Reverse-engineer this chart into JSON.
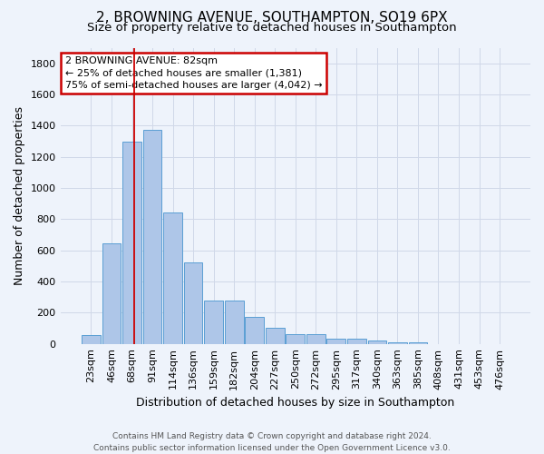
{
  "title": "2, BROWNING AVENUE, SOUTHAMPTON, SO19 6PX",
  "subtitle": "Size of property relative to detached houses in Southampton",
  "xlabel": "Distribution of detached houses by size in Southampton",
  "ylabel": "Number of detached properties",
  "footer_line1": "Contains HM Land Registry data © Crown copyright and database right 2024.",
  "footer_line2": "Contains public sector information licensed under the Open Government Licence v3.0.",
  "categories": [
    "23sqm",
    "46sqm",
    "68sqm",
    "91sqm",
    "114sqm",
    "136sqm",
    "159sqm",
    "182sqm",
    "204sqm",
    "227sqm",
    "250sqm",
    "272sqm",
    "295sqm",
    "317sqm",
    "340sqm",
    "363sqm",
    "385sqm",
    "408sqm",
    "431sqm",
    "453sqm",
    "476sqm"
  ],
  "values": [
    55,
    645,
    1300,
    1370,
    845,
    525,
    275,
    275,
    175,
    105,
    65,
    65,
    35,
    35,
    20,
    10,
    10,
    0,
    0,
    0,
    0
  ],
  "bar_color": "#aec6e8",
  "bar_edge_color": "#5a9fd4",
  "background_color": "#eef3fb",
  "grid_color": "#d0d8e8",
  "annotation_line1": "2 BROWNING AVENUE: 82sqm",
  "annotation_line2": "← 25% of detached houses are smaller (1,381)",
  "annotation_line3": "75% of semi-detached houses are larger (4,042) →",
  "annotation_box_color": "#ffffff",
  "annotation_box_edge_color": "#cc0000",
  "vline_color": "#cc0000",
  "ylim": [
    0,
    1900
  ],
  "yticks": [
    0,
    200,
    400,
    600,
    800,
    1000,
    1200,
    1400,
    1600,
    1800
  ],
  "title_fontsize": 11,
  "subtitle_fontsize": 9.5,
  "xlabel_fontsize": 9,
  "ylabel_fontsize": 9,
  "tick_fontsize": 8,
  "footer_fontsize": 6.5,
  "annotation_fontsize": 8
}
